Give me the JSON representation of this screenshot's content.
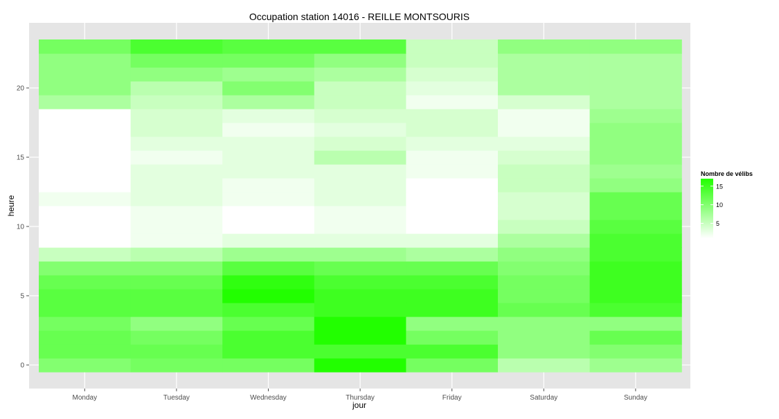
{
  "chart_data": {
    "type": "heatmap",
    "title": "Occupation station 14016 - REILLE MONTSOURIS",
    "xlabel": "jour",
    "ylabel": "heure",
    "x_categories": [
      "Monday",
      "Tuesday",
      "Wednesday",
      "Thursday",
      "Friday",
      "Saturday",
      "Sunday"
    ],
    "y_hours": [
      0,
      1,
      2,
      3,
      4,
      5,
      6,
      7,
      8,
      9,
      10,
      11,
      12,
      13,
      14,
      15,
      16,
      17,
      18,
      19,
      20,
      21,
      22,
      23
    ],
    "y_ticks": [
      0,
      5,
      10,
      15,
      20
    ],
    "ylim": [
      -0.5,
      23.5
    ],
    "grid": true,
    "legend": {
      "title": "Nombre de vélibs",
      "placement": "right",
      "ticks": [
        5,
        10,
        15
      ],
      "range": [
        1,
        17
      ],
      "low_color": "#ffffff",
      "high_color": "#22ff00"
    },
    "values": [
      [
        10,
        11,
        11,
        17,
        11,
        6,
        8
      ],
      [
        12,
        12,
        14,
        14,
        14,
        9,
        10
      ],
      [
        12,
        11,
        14,
        17,
        11,
        9,
        12
      ],
      [
        11,
        9,
        12,
        17,
        9,
        9,
        9
      ],
      [
        13,
        13,
        14,
        15,
        15,
        12,
        14
      ],
      [
        13,
        13,
        17,
        15,
        15,
        11,
        15
      ],
      [
        12,
        12,
        16,
        14,
        14,
        11,
        15
      ],
      [
        10,
        10,
        13,
        12,
        12,
        10,
        15
      ],
      [
        5,
        6,
        8,
        8,
        7,
        9,
        14
      ],
      [
        1,
        2,
        3,
        3,
        3,
        7,
        14
      ],
      [
        1,
        2,
        1,
        2,
        1,
        5,
        13
      ],
      [
        1,
        2,
        1,
        2,
        1,
        4,
        12
      ],
      [
        2,
        3,
        2,
        3,
        1,
        4,
        12
      ],
      [
        1,
        3,
        2,
        3,
        1,
        5,
        9
      ],
      [
        1,
        3,
        3,
        3,
        2,
        5,
        8
      ],
      [
        1,
        2,
        3,
        6,
        2,
        4,
        9
      ],
      [
        1,
        3,
        3,
        4,
        3,
        3,
        9
      ],
      [
        1,
        4,
        2,
        3,
        4,
        2,
        9
      ],
      [
        1,
        4,
        3,
        4,
        4,
        2,
        8
      ],
      [
        7,
        5,
        7,
        5,
        2,
        4,
        7
      ],
      [
        9,
        6,
        10,
        5,
        3,
        7,
        7
      ],
      [
        9,
        9,
        8,
        7,
        4,
        7,
        7
      ],
      [
        9,
        11,
        11,
        9,
        5,
        7,
        7
      ],
      [
        11,
        14,
        13,
        13,
        5,
        9,
        9
      ]
    ]
  }
}
